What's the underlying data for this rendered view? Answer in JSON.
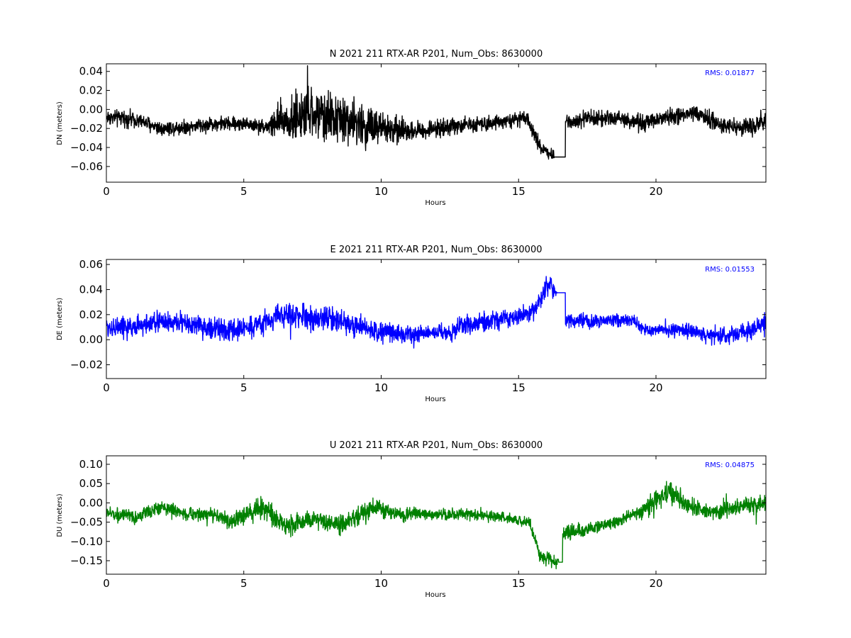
{
  "chart_data": [
    {
      "type": "line",
      "title": "N 2021 211 RTX-AR  P201, Num_Obs: 8630000",
      "xlabel": "Hours",
      "ylabel": "DN (meters)",
      "xlim": [
        0,
        24
      ],
      "ylim": [
        -0.0765,
        0.048
      ],
      "xticks": [
        0,
        5,
        10,
        15,
        20
      ],
      "yticks": [
        -0.06,
        -0.04,
        -0.02,
        0.0,
        0.02,
        0.04
      ],
      "ytick_labels": [
        "−0.06",
        "−0.04",
        "−0.02",
        "0.00",
        "0.02",
        "0.04"
      ],
      "rms_label": "RMS:  0.01877",
      "color": "#000000",
      "baseline": [
        [
          0,
          -0.008
        ],
        [
          1,
          -0.01
        ],
        [
          2,
          -0.02
        ],
        [
          3,
          -0.018
        ],
        [
          4,
          -0.015
        ],
        [
          5,
          -0.015
        ],
        [
          5.8,
          -0.018
        ],
        [
          6.5,
          -0.012
        ],
        [
          7.5,
          -0.005
        ],
        [
          8.5,
          -0.01
        ],
        [
          9.5,
          -0.018
        ],
        [
          10.5,
          -0.022
        ],
        [
          11.5,
          -0.022
        ],
        [
          12.5,
          -0.018
        ],
        [
          13.5,
          -0.015
        ],
        [
          14.5,
          -0.012
        ],
        [
          15.3,
          -0.01
        ],
        [
          15.8,
          -0.04
        ],
        [
          16.3,
          -0.05
        ],
        [
          16.6,
          -0.04
        ],
        [
          16.7,
          -0.012
        ],
        [
          17.5,
          -0.01
        ],
        [
          18.5,
          -0.008
        ],
        [
          19.5,
          -0.015
        ],
        [
          20.5,
          -0.008
        ],
        [
          21.5,
          -0.005
        ],
        [
          22.5,
          -0.018
        ],
        [
          23.5,
          -0.018
        ],
        [
          24,
          -0.012
        ]
      ],
      "amplitude": [
        [
          0,
          0.012
        ],
        [
          5.8,
          0.01
        ],
        [
          6.2,
          0.028
        ],
        [
          7,
          0.04
        ],
        [
          9,
          0.035
        ],
        [
          10,
          0.03
        ],
        [
          11,
          0.014
        ],
        [
          15,
          0.01
        ],
        [
          16.5,
          0.012
        ],
        [
          19,
          0.012
        ],
        [
          21,
          0.013
        ],
        [
          24,
          0.013
        ]
      ],
      "gap": [
        16.3,
        16.7
      ]
    },
    {
      "type": "line",
      "title": "E 2021 211 RTX-AR  P201, Num_Obs: 8630000",
      "xlabel": "Hours",
      "ylabel": "DE (meters)",
      "xlim": [
        0,
        24
      ],
      "ylim": [
        -0.031,
        0.064
      ],
      "xticks": [
        0,
        5,
        10,
        15,
        20
      ],
      "yticks": [
        -0.02,
        0.0,
        0.02,
        0.04,
        0.06
      ],
      "ytick_labels": [
        "−0.02",
        "0.00",
        "0.02",
        "0.04",
        "0.06"
      ],
      "rms_label": "RMS:  0.01553",
      "color": "#0000ff",
      "baseline": [
        [
          0,
          0.01
        ],
        [
          1,
          0.01
        ],
        [
          2,
          0.015
        ],
        [
          3,
          0.012
        ],
        [
          4,
          0.008
        ],
        [
          4.5,
          0.007
        ],
        [
          5.5,
          0.012
        ],
        [
          6.5,
          0.02
        ],
        [
          7.5,
          0.018
        ],
        [
          8.5,
          0.015
        ],
        [
          9.5,
          0.008
        ],
        [
          10.5,
          0.005
        ],
        [
          11.5,
          0.005
        ],
        [
          12.5,
          0.006
        ],
        [
          13,
          0.012
        ],
        [
          14,
          0.015
        ],
        [
          15,
          0.018
        ],
        [
          15.6,
          0.025
        ],
        [
          16.1,
          0.045
        ],
        [
          16.5,
          0.035
        ],
        [
          16.7,
          0.015
        ],
        [
          17.5,
          0.015
        ],
        [
          18.5,
          0.015
        ],
        [
          19.2,
          0.015
        ],
        [
          19.5,
          0.008
        ],
        [
          20.5,
          0.008
        ],
        [
          21.5,
          0.005
        ],
        [
          22.5,
          0.003
        ],
        [
          23.5,
          0.008
        ],
        [
          24,
          0.012
        ]
      ],
      "amplitude": [
        [
          0,
          0.012
        ],
        [
          6,
          0.013
        ],
        [
          8,
          0.014
        ],
        [
          10,
          0.012
        ],
        [
          12,
          0.008
        ],
        [
          13,
          0.012
        ],
        [
          15,
          0.01
        ],
        [
          16,
          0.012
        ],
        [
          17,
          0.01
        ],
        [
          19.5,
          0.006
        ],
        [
          21,
          0.008
        ],
        [
          24,
          0.012
        ]
      ],
      "gap": [
        16.4,
        16.7
      ]
    },
    {
      "type": "line",
      "title": "U 2021 211 RTX-AR  P201, Num_Obs: 8630000",
      "xlabel": "Hours",
      "ylabel": "DU (meters)",
      "xlim": [
        0,
        24
      ],
      "ylim": [
        -0.185,
        0.122
      ],
      "xticks": [
        0,
        5,
        10,
        15,
        20
      ],
      "yticks": [
        -0.15,
        -0.1,
        -0.05,
        0.0,
        0.05,
        0.1
      ],
      "ytick_labels": [
        "−0.15",
        "−0.10",
        "−0.05",
        "0.00",
        "0.05",
        "0.10"
      ],
      "rms_label": "RMS:  0.04875",
      "color": "#008000",
      "baseline": [
        [
          0,
          -0.025
        ],
        [
          1,
          -0.04
        ],
        [
          2,
          -0.01
        ],
        [
          3,
          -0.03
        ],
        [
          4,
          -0.03
        ],
        [
          4.5,
          -0.05
        ],
        [
          5.7,
          -0.01
        ],
        [
          6.5,
          -0.06
        ],
        [
          7.5,
          -0.045
        ],
        [
          8.5,
          -0.06
        ],
        [
          9.8,
          -0.01
        ],
        [
          10.5,
          -0.03
        ],
        [
          11.5,
          -0.03
        ],
        [
          12.5,
          -0.03
        ],
        [
          13.5,
          -0.03
        ],
        [
          14.5,
          -0.04
        ],
        [
          15.4,
          -0.05
        ],
        [
          15.8,
          -0.14
        ],
        [
          16.5,
          -0.155
        ],
        [
          16.6,
          -0.08
        ],
        [
          17.5,
          -0.07
        ],
        [
          18.5,
          -0.05
        ],
        [
          19.5,
          -0.02
        ],
        [
          20.5,
          0.03
        ],
        [
          21.2,
          -0.01
        ],
        [
          22,
          -0.025
        ],
        [
          23,
          -0.01
        ],
        [
          24,
          -0.005
        ]
      ],
      "amplitude": [
        [
          0,
          0.025
        ],
        [
          4.5,
          0.025
        ],
        [
          5.7,
          0.045
        ],
        [
          7,
          0.035
        ],
        [
          9.8,
          0.035
        ],
        [
          11,
          0.025
        ],
        [
          15,
          0.02
        ],
        [
          16,
          0.025
        ],
        [
          17,
          0.03
        ],
        [
          19,
          0.02
        ],
        [
          20.5,
          0.045
        ],
        [
          21.5,
          0.03
        ],
        [
          24,
          0.035
        ]
      ],
      "gap": [
        16.45,
        16.6
      ]
    }
  ]
}
